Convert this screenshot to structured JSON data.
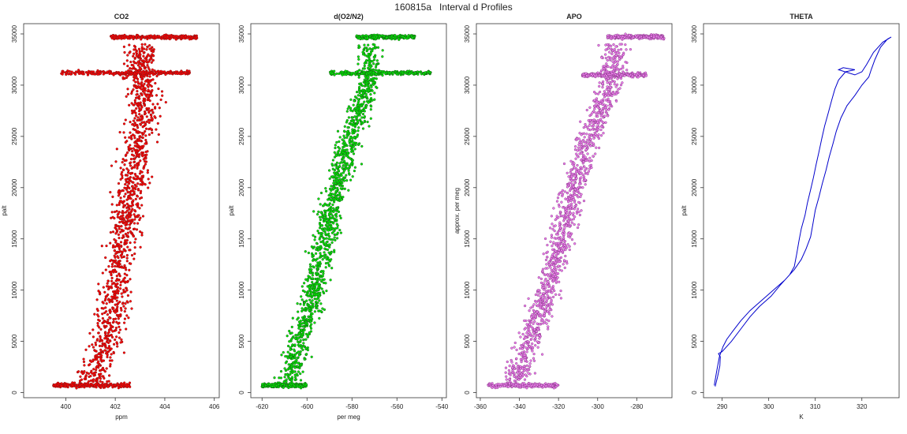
{
  "page": {
    "title": "160815a   Interval d Profiles"
  },
  "chart_data": [
    {
      "type": "scatter",
      "title": "CO2",
      "xlabel": "ppm",
      "ylabel": "palt",
      "xlim": [
        398.3,
        406.2
      ],
      "ylim": [
        -500,
        36000
      ],
      "xticks": [
        400,
        402,
        404,
        406
      ],
      "yticks": [
        0,
        5000,
        10000,
        15000,
        20000,
        25000,
        30000,
        35000
      ],
      "colors": {
        "fill": "#ff0000",
        "edge": "#8b1a1a"
      },
      "series": [
        {
          "profile": [
            [
              401.0,
              700
            ],
            [
              401.2,
              2000
            ],
            [
              401.5,
              4000
            ],
            [
              401.7,
              6000
            ],
            [
              401.9,
              8000
            ],
            [
              402.0,
              10000
            ],
            [
              402.1,
              12000
            ],
            [
              402.3,
              14000
            ],
            [
              402.4,
              16000
            ],
            [
              402.5,
              18000
            ],
            [
              402.6,
              20000
            ],
            [
              402.8,
              22000
            ],
            [
              402.9,
              24000
            ],
            [
              403.0,
              26000
            ],
            [
              403.2,
              28000
            ],
            [
              403.1,
              29500
            ],
            [
              403.0,
              31000
            ]
          ],
          "spread": 0.6,
          "bands": [
            {
              "y": 700,
              "x0": 399.5,
              "x1": 402.6
            },
            {
              "y": 31200,
              "x0": 399.8,
              "x1": 405.0
            },
            {
              "y": 34700,
              "x0": 401.8,
              "x1": 405.3
            }
          ]
        }
      ]
    },
    {
      "type": "scatter",
      "title": "d(O2/N2)",
      "xlabel": "per meg",
      "ylabel": "palt",
      "xlim": [
        -625,
        -538
      ],
      "ylim": [
        -500,
        36000
      ],
      "xticks": [
        -620,
        -600,
        -580,
        -560,
        -540
      ],
      "yticks": [
        0,
        5000,
        10000,
        15000,
        20000,
        25000,
        30000,
        35000
      ],
      "colors": {
        "fill": "#00ee00",
        "edge": "#1a5c1a"
      },
      "series": [
        {
          "profile": [
            [
              -608,
              700
            ],
            [
              -607,
              2000
            ],
            [
              -605,
              4000
            ],
            [
              -602,
              6000
            ],
            [
              -599,
              8000
            ],
            [
              -597,
              10000
            ],
            [
              -595,
              12000
            ],
            [
              -593,
              14000
            ],
            [
              -591,
              16000
            ],
            [
              -589,
              18000
            ],
            [
              -587,
              20000
            ],
            [
              -584,
              22000
            ],
            [
              -582,
              24000
            ],
            [
              -579,
              26000
            ],
            [
              -576,
              28000
            ],
            [
              -573,
              29500
            ],
            [
              -572,
              31000
            ]
          ],
          "spread": 5,
          "bands": [
            {
              "y": 700,
              "x0": -620,
              "x1": -600
            },
            {
              "y": 31200,
              "x0": -590,
              "x1": -545
            },
            {
              "y": 34700,
              "x0": -578,
              "x1": -552
            }
          ]
        }
      ]
    },
    {
      "type": "scatter",
      "title": "APO",
      "xlabel": "",
      "ylabel": "approx. per meg",
      "xlim": [
        -362,
        -262
      ],
      "ylim": [
        -500,
        36000
      ],
      "xticks": [
        -360,
        -340,
        -320,
        -300,
        -280
      ],
      "yticks": [
        0,
        5000,
        10000,
        15000,
        20000,
        25000,
        30000,
        35000
      ],
      "colors": {
        "fill": "#ee82ee",
        "edge": "#8b3a8b"
      },
      "series": [
        {
          "profile": [
            [
              -343,
              700
            ],
            [
              -340,
              2000
            ],
            [
              -337,
              4000
            ],
            [
              -333,
              6000
            ],
            [
              -330,
              8000
            ],
            [
              -326,
              10000
            ],
            [
              -323,
              12000
            ],
            [
              -320,
              14000
            ],
            [
              -317,
              16000
            ],
            [
              -315,
              18000
            ],
            [
              -312,
              20000
            ],
            [
              -309,
              22000
            ],
            [
              -306,
              24000
            ],
            [
              -302,
              26000
            ],
            [
              -298,
              28000
            ],
            [
              -294,
              29500
            ],
            [
              -292,
              31000
            ]
          ],
          "spread": 6,
          "bands": [
            {
              "y": 700,
              "x0": -356,
              "x1": -320
            },
            {
              "y": 31000,
              "x0": -308,
              "x1": -275
            },
            {
              "y": 34700,
              "x0": -295,
              "x1": -266
            }
          ]
        }
      ]
    },
    {
      "type": "line",
      "title": "THETA",
      "xlabel": "K",
      "ylabel": "palt",
      "xlim": [
        286.0,
        328.0
      ],
      "ylim": [
        -500,
        36000
      ],
      "xticks": [
        290,
        300,
        310,
        320
      ],
      "yticks": [
        0,
        5000,
        10000,
        15000,
        20000,
        25000,
        30000,
        35000
      ],
      "colors": {
        "line": "#0000cc"
      },
      "series": [
        {
          "points": [
            [
              288.5,
              600
            ],
            [
              289.0,
              1500
            ],
            [
              289.5,
              2600
            ],
            [
              289.6,
              3500
            ],
            [
              289.2,
              3800
            ],
            [
              290.0,
              4000
            ],
            [
              292.0,
              5000
            ],
            [
              294.0,
              6200
            ],
            [
              296.0,
              7400
            ],
            [
              298.0,
              8400
            ],
            [
              300.5,
              9400
            ],
            [
              302.5,
              10500
            ],
            [
              304.5,
              11500
            ],
            [
              305.5,
              12300
            ],
            [
              306.0,
              13500
            ],
            [
              306.5,
              14800
            ],
            [
              307.0,
              16000
            ],
            [
              307.8,
              17300
            ],
            [
              308.3,
              18500
            ],
            [
              309.0,
              19800
            ],
            [
              309.6,
              21000
            ],
            [
              310.2,
              22300
            ],
            [
              310.8,
              23500
            ],
            [
              311.4,
              24800
            ],
            [
              312.0,
              26000
            ],
            [
              312.8,
              27300
            ],
            [
              313.5,
              28500
            ],
            [
              314.2,
              29600
            ],
            [
              315.0,
              30500
            ],
            [
              316.5,
              31300
            ],
            [
              318.5,
              31500
            ],
            [
              316.0,
              31700
            ],
            [
              315.0,
              31500
            ],
            [
              318.5,
              31000
            ],
            [
              320.0,
              31300
            ],
            [
              321.0,
              32000
            ],
            [
              322.5,
              33200
            ],
            [
              324.5,
              34200
            ],
            [
              326.3,
              34700
            ],
            [
              325.5,
              34500
            ],
            [
              324.0,
              33700
            ],
            [
              322.8,
              32500
            ],
            [
              322.0,
              31500
            ],
            [
              321.5,
              30800
            ],
            [
              320.0,
              30000
            ],
            [
              318.5,
              29000
            ],
            [
              316.8,
              28000
            ],
            [
              315.5,
              26800
            ],
            [
              314.5,
              25500
            ],
            [
              313.8,
              24300
            ],
            [
              313.0,
              23000
            ],
            [
              312.3,
              21700
            ],
            [
              311.5,
              20400
            ],
            [
              310.8,
              19100
            ],
            [
              310.0,
              17800
            ],
            [
              309.5,
              16500
            ],
            [
              309.0,
              15200
            ],
            [
              308.0,
              14000
            ],
            [
              307.0,
              13000
            ],
            [
              305.5,
              12000
            ],
            [
              303.5,
              11000
            ],
            [
              301.0,
              10000
            ],
            [
              298.5,
              9000
            ],
            [
              296.0,
              8000
            ],
            [
              294.0,
              7000
            ],
            [
              292.3,
              6000
            ],
            [
              291.0,
              5200
            ],
            [
              290.2,
              4500
            ],
            [
              289.4,
              3500
            ],
            [
              288.8,
              2000
            ],
            [
              288.3,
              700
            ]
          ]
        }
      ]
    }
  ]
}
